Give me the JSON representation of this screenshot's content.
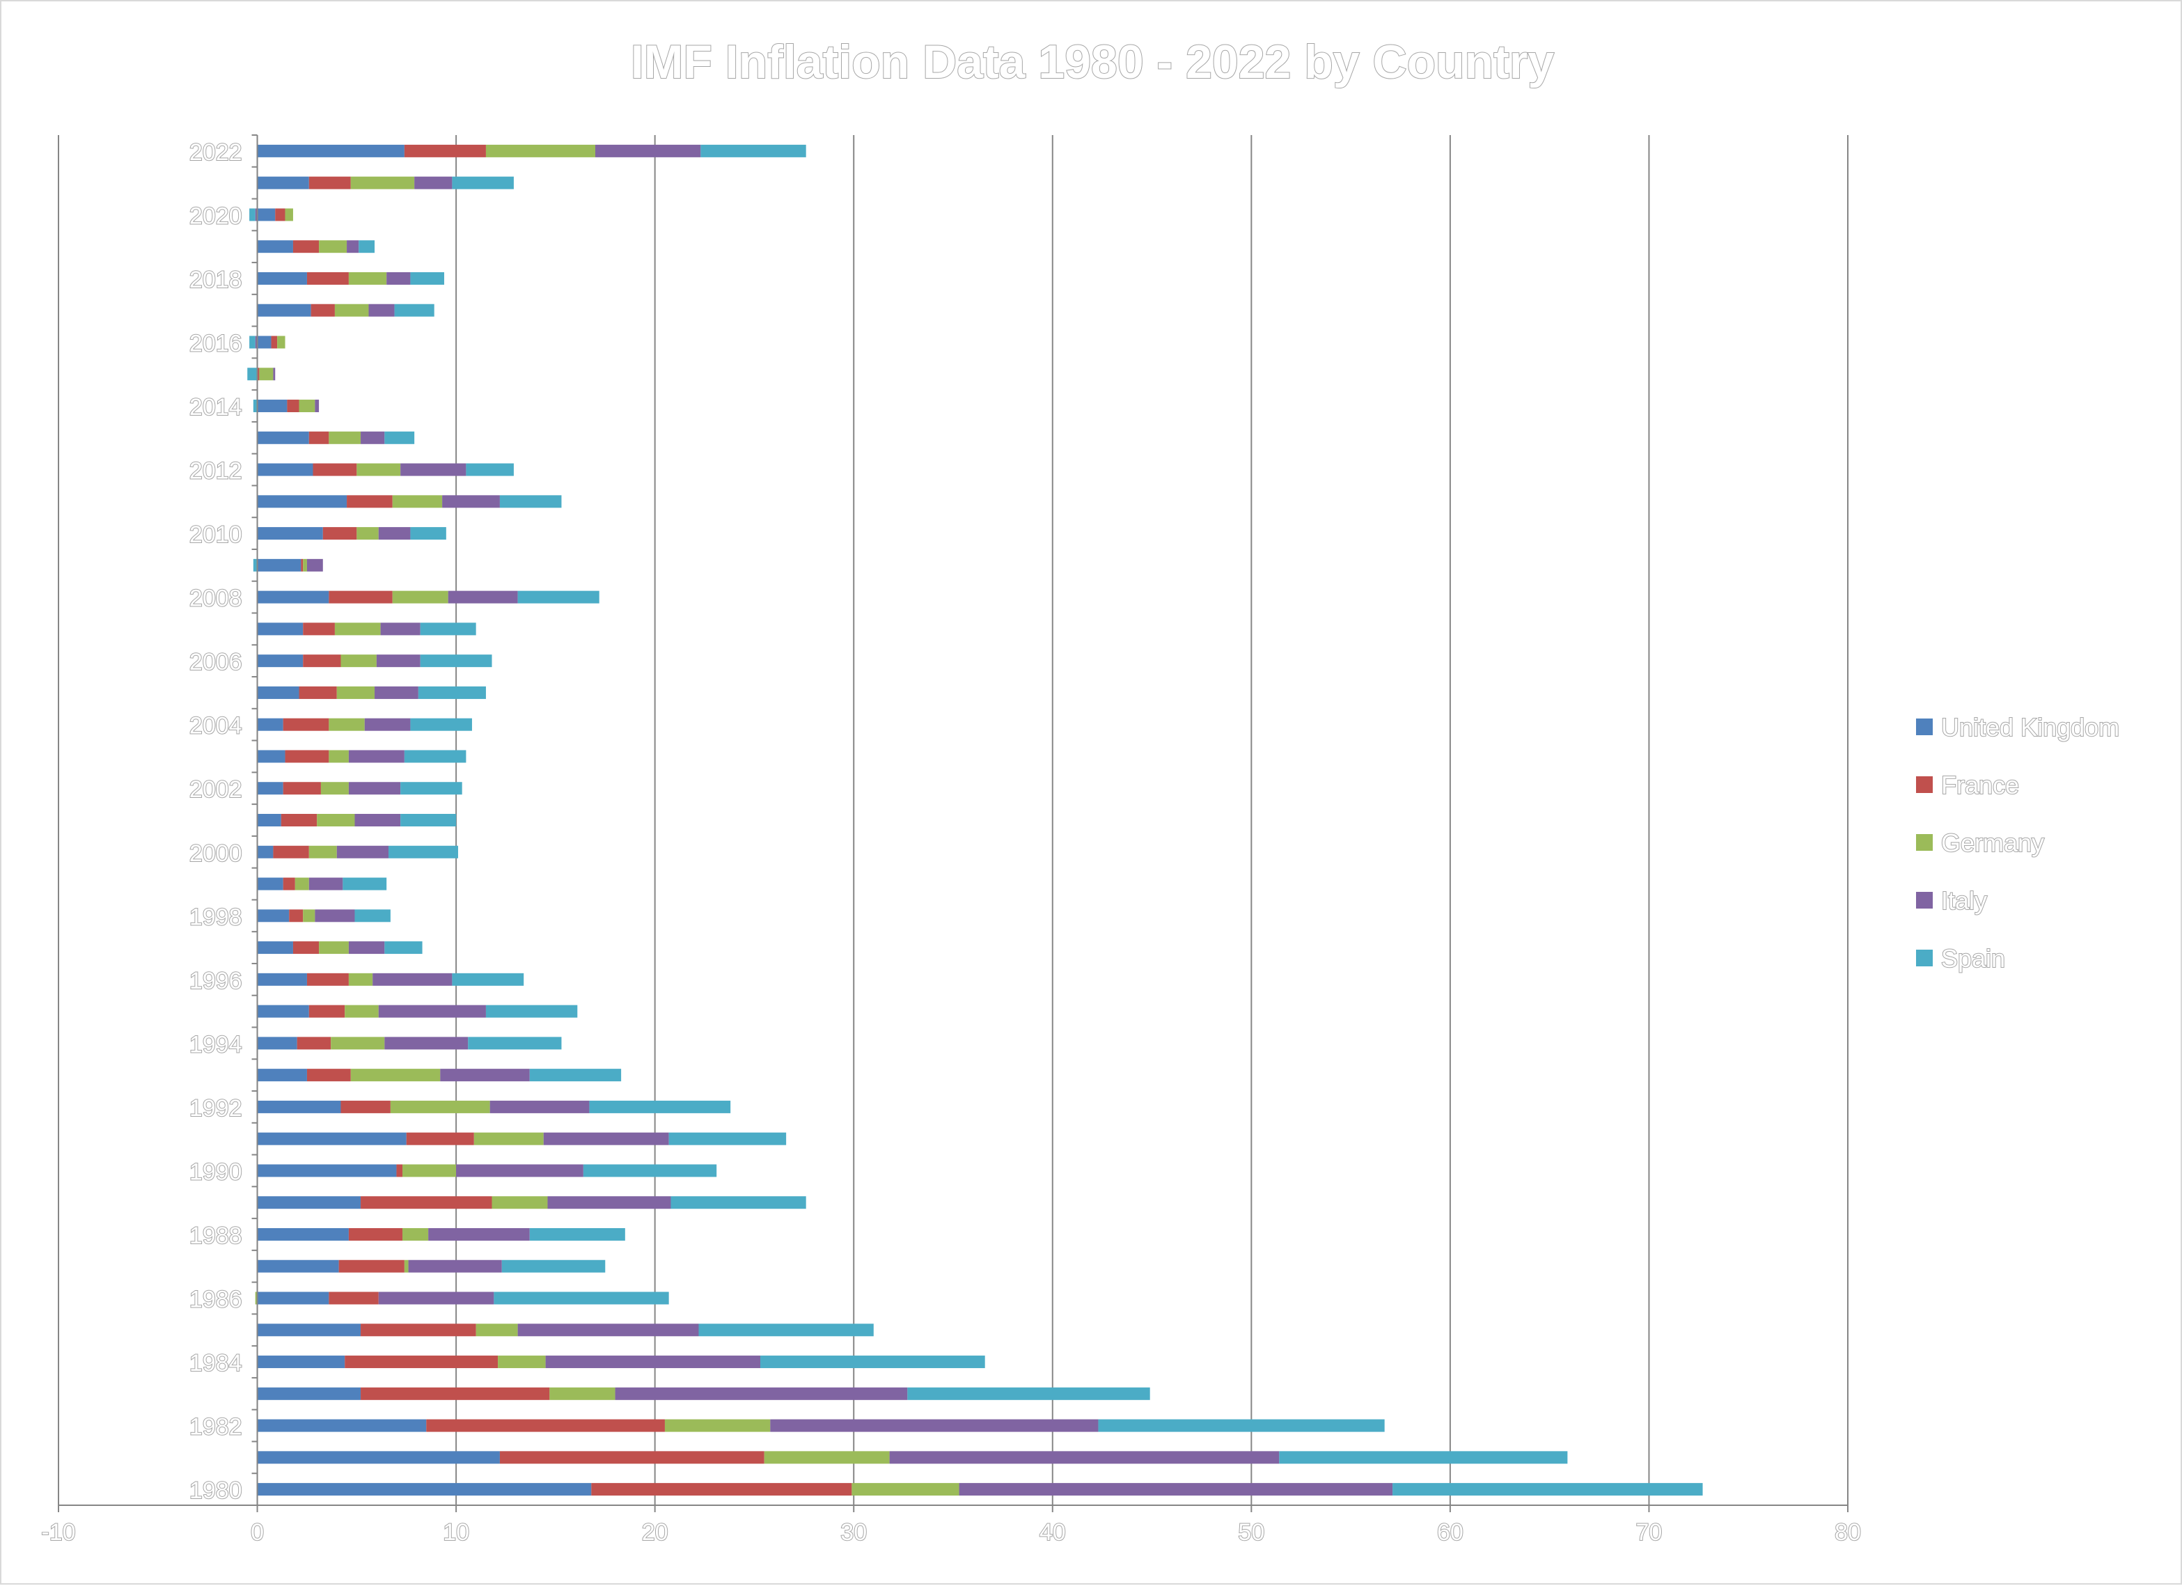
{
  "chart_data": {
    "type": "bar",
    "orientation": "horizontal",
    "stacked": true,
    "title": "IMF Inflation Data 1980 - 2022 by Country",
    "xlabel": "",
    "ylabel": "",
    "xlim": [
      -10,
      80
    ],
    "x_ticks": [
      -10,
      0,
      10,
      20,
      30,
      40,
      50,
      60,
      70,
      80
    ],
    "grid": "vertical major gridlines",
    "legend_position": "right",
    "categories": [
      1980,
      1981,
      1982,
      1983,
      1984,
      1985,
      1986,
      1987,
      1988,
      1989,
      1990,
      1991,
      1992,
      1993,
      1994,
      1995,
      1996,
      1997,
      1998,
      1999,
      2000,
      2001,
      2002,
      2003,
      2004,
      2005,
      2006,
      2007,
      2008,
      2009,
      2010,
      2011,
      2012,
      2013,
      2014,
      2015,
      2016,
      2017,
      2018,
      2019,
      2020,
      2021,
      2022
    ],
    "category_labels": [
      "1980",
      "1982",
      "1984",
      "1986",
      "1988",
      "1990",
      "1992",
      "1994",
      "1996",
      "1998",
      "2000",
      "2002",
      "2004",
      "2006",
      "2008",
      "2010",
      "2012",
      "2014",
      "2016",
      "2018",
      "2020",
      "2022"
    ],
    "series": [
      {
        "name": "United Kingdom",
        "color": "#4f81bd",
        "values": [
          16.8,
          12.2,
          8.5,
          5.2,
          4.4,
          5.2,
          3.6,
          4.1,
          4.6,
          5.2,
          7.0,
          7.5,
          4.2,
          2.5,
          2.0,
          2.6,
          2.5,
          1.8,
          1.6,
          1.3,
          0.8,
          1.2,
          1.3,
          1.4,
          1.3,
          2.1,
          2.3,
          2.3,
          3.6,
          2.2,
          3.3,
          4.5,
          2.8,
          2.6,
          1.5,
          0.0,
          0.7,
          2.7,
          2.5,
          1.8,
          0.9,
          2.6,
          7.4
        ]
      },
      {
        "name": "France",
        "color": "#c0504d",
        "values": [
          13.1,
          13.3,
          12.0,
          9.5,
          7.7,
          5.8,
          2.5,
          3.3,
          2.7,
          6.6,
          0.3,
          3.4,
          2.5,
          2.2,
          1.7,
          1.8,
          2.1,
          1.3,
          0.7,
          0.6,
          1.8,
          1.8,
          1.9,
          2.2,
          2.3,
          1.9,
          1.9,
          1.6,
          3.2,
          0.1,
          1.7,
          2.3,
          2.2,
          1.0,
          0.6,
          0.1,
          0.3,
          1.2,
          2.1,
          1.3,
          0.5,
          2.1,
          4.1
        ]
      },
      {
        "name": "Germany",
        "color": "#9bbb59",
        "values": [
          5.4,
          6.3,
          5.3,
          3.3,
          2.4,
          2.1,
          -0.1,
          0.2,
          1.3,
          2.8,
          2.7,
          3.5,
          5.0,
          4.5,
          2.7,
          1.7,
          1.2,
          1.5,
          0.6,
          0.7,
          1.4,
          1.9,
          1.4,
          1.0,
          1.8,
          1.9,
          1.8,
          2.3,
          2.8,
          0.2,
          1.1,
          2.5,
          2.2,
          1.6,
          0.8,
          0.7,
          0.4,
          1.7,
          1.9,
          1.4,
          0.4,
          3.2,
          5.5
        ]
      },
      {
        "name": "Italy",
        "color": "#8064a2",
        "values": [
          21.8,
          19.6,
          16.5,
          14.7,
          10.8,
          9.1,
          5.8,
          4.7,
          5.1,
          6.2,
          6.4,
          6.3,
          5.0,
          4.5,
          4.2,
          5.4,
          4.0,
          1.8,
          2.0,
          1.7,
          2.6,
          2.3,
          2.6,
          2.8,
          2.3,
          2.2,
          2.2,
          2.0,
          3.5,
          0.8,
          1.6,
          2.9,
          3.3,
          1.2,
          0.2,
          0.1,
          -0.1,
          1.3,
          1.2,
          0.6,
          -0.1,
          1.9,
          5.3
        ]
      },
      {
        "name": "Spain",
        "color": "#4bacc6",
        "values": [
          15.6,
          14.5,
          14.4,
          12.2,
          11.3,
          8.8,
          8.8,
          5.2,
          4.8,
          6.8,
          6.7,
          5.9,
          7.1,
          4.6,
          4.7,
          4.6,
          3.6,
          1.9,
          1.8,
          2.2,
          3.5,
          2.8,
          3.1,
          3.1,
          3.1,
          3.4,
          3.6,
          2.8,
          4.1,
          -0.2,
          1.8,
          3.1,
          2.4,
          1.5,
          -0.2,
          -0.5,
          -0.3,
          2.0,
          1.7,
          0.8,
          -0.3,
          3.1,
          5.3
        ]
      }
    ]
  }
}
